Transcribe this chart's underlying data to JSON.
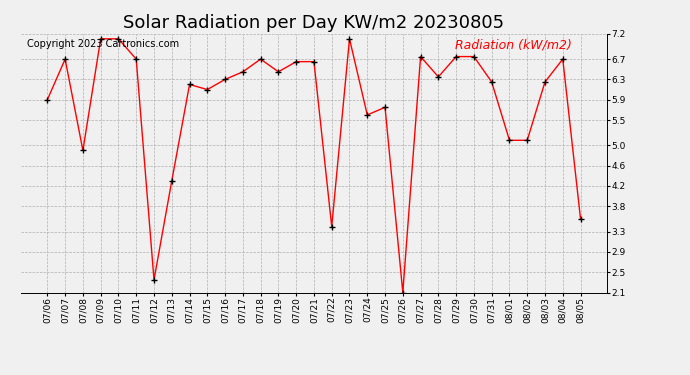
{
  "title": "Solar Radiation per Day KW/m2 20230805",
  "copyright": "Copyright 2023 Cartronics.com",
  "legend_label": "Radiation (kW/m2)",
  "dates": [
    "07/06",
    "07/07",
    "07/08",
    "07/09",
    "07/10",
    "07/11",
    "07/12",
    "07/13",
    "07/14",
    "07/15",
    "07/16",
    "07/17",
    "07/18",
    "07/19",
    "07/20",
    "07/21",
    "07/22",
    "07/23",
    "07/24",
    "07/25",
    "07/26",
    "07/27",
    "07/28",
    "07/29",
    "07/30",
    "07/31",
    "08/01",
    "08/02",
    "08/03",
    "08/04",
    "08/05"
  ],
  "values": [
    5.9,
    6.7,
    4.9,
    7.1,
    7.1,
    6.7,
    2.35,
    4.3,
    6.2,
    6.1,
    6.3,
    6.45,
    6.7,
    6.45,
    6.65,
    6.65,
    3.4,
    7.1,
    5.6,
    5.75,
    2.1,
    6.75,
    6.35,
    6.75,
    6.75,
    6.25,
    5.1,
    5.1,
    6.25,
    6.7,
    3.55
  ],
  "line_color": "red",
  "marker_color": "black",
  "grid_color": "#aaaaaa",
  "bg_color": "#f0f0f0",
  "ylim": [
    2.1,
    7.2
  ],
  "yticks": [
    2.1,
    2.5,
    2.9,
    3.3,
    3.8,
    4.2,
    4.6,
    5.0,
    5.5,
    5.9,
    6.3,
    6.7,
    7.2
  ],
  "title_fontsize": 13,
  "copyright_fontsize": 7,
  "legend_fontsize": 9,
  "tick_fontsize": 6.5
}
